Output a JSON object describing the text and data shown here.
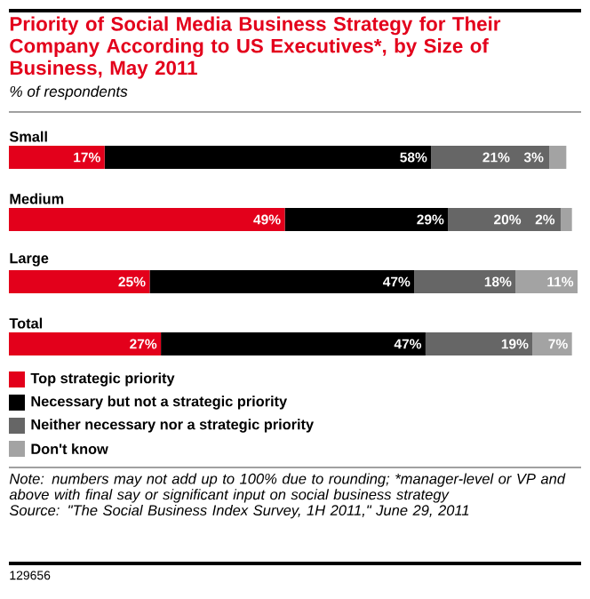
{
  "chart_data": {
    "type": "bar",
    "orientation": "horizontal",
    "stacked": true,
    "title": "Priority of Social Media Business Strategy for Their Company According to US Executives*, by Size of Business, May 2011",
    "subtitle": "% of respondents",
    "categories": [
      "Small",
      "Medium",
      "Large",
      "Total"
    ],
    "series": [
      {
        "name": "Top strategic priority",
        "color": "#e3001b",
        "values": [
          17,
          49,
          25,
          27
        ],
        "value_labels": [
          "17%",
          "49%",
          "25%",
          "27%"
        ]
      },
      {
        "name": "Necessary but not a strategic priority",
        "color": "#000000",
        "values": [
          58,
          29,
          47,
          47
        ],
        "value_labels": [
          "58%",
          "29%",
          "47%",
          "47%"
        ]
      },
      {
        "name": "Neither necessary nor a strategic priority",
        "color": "#666666",
        "values": [
          21,
          20,
          18,
          19
        ],
        "value_labels": [
          "21%",
          "20%",
          "18%",
          "19%"
        ]
      },
      {
        "name": "Don't know",
        "color": "#a3a3a3",
        "values": [
          3,
          2,
          11,
          7
        ],
        "value_labels": [
          "3%",
          "2%",
          "11%",
          "7%"
        ]
      }
    ],
    "legend": "bottom",
    "annotations": [
      "Note: numbers may not add up to 100% due to rounding; *manager-level or VP and above with final say or significant input on social business strategy",
      "Source: \"The Social Business Index Survey, 1H 2011,\" June 29, 2011",
      "129656"
    ]
  }
}
